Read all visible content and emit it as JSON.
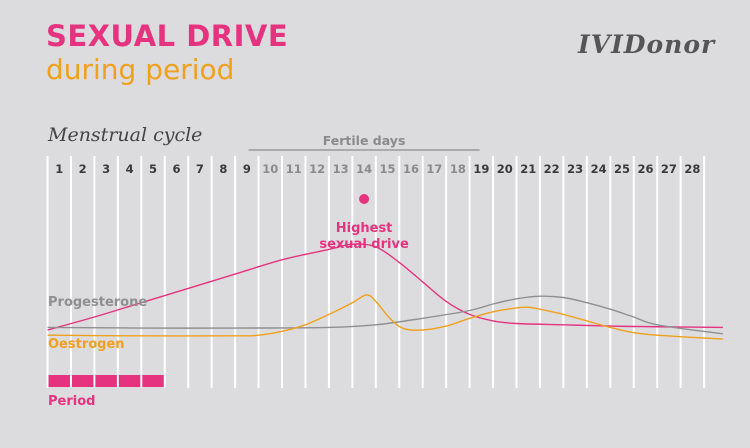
{
  "header": {
    "title": "SEXUAL DRIVE",
    "subtitle": "during period",
    "logo": "IVIDonor",
    "cycle_label": "Menstrual cycle"
  },
  "colors": {
    "accent_pink": "#e5337f",
    "accent_orange": "#f0a01c",
    "grey": "#8f8f8f",
    "fertile_text": "#8a8a8a",
    "background": "#dcdcde"
  },
  "chart_data": {
    "type": "line",
    "x_label": "Menstrual cycle",
    "days": [
      1,
      2,
      3,
      4,
      5,
      6,
      7,
      8,
      9,
      10,
      11,
      12,
      13,
      14,
      15,
      16,
      17,
      18,
      19,
      20,
      21,
      22,
      23,
      24,
      25,
      26,
      27,
      28
    ],
    "fertile_days": {
      "label": "Fertile days",
      "start": 10,
      "end": 18
    },
    "period": {
      "label": "Period",
      "start": 1,
      "end": 5
    },
    "peak_annotation": {
      "day": 14,
      "lines": [
        "Highest",
        "sexual drive"
      ]
    },
    "series": [
      {
        "name": "",
        "role": "sexual-drive",
        "color": "#e5337f",
        "points": [
          [
            0,
            100
          ],
          [
            2,
            90
          ],
          [
            4,
            79
          ],
          [
            6,
            68
          ],
          [
            8,
            57
          ],
          [
            10,
            46
          ],
          [
            12,
            38
          ],
          [
            13,
            34
          ],
          [
            14,
            36
          ],
          [
            15,
            48
          ],
          [
            16,
            63
          ],
          [
            17,
            78
          ],
          [
            18,
            88
          ],
          [
            19,
            93
          ],
          [
            20,
            95
          ],
          [
            22,
            96
          ],
          [
            24,
            97
          ],
          [
            26,
            97.5
          ],
          [
            28.8,
            98
          ]
        ]
      },
      {
        "name": "Progesterone",
        "role": "progesterone",
        "color": "#8f8f8f",
        "points": [
          [
            0,
            98
          ],
          [
            4,
            98.5
          ],
          [
            8,
            98.5
          ],
          [
            12,
            98
          ],
          [
            14,
            96
          ],
          [
            16,
            91
          ],
          [
            18,
            85
          ],
          [
            19,
            80
          ],
          [
            20,
            76
          ],
          [
            21,
            74
          ],
          [
            22,
            75
          ],
          [
            23,
            79
          ],
          [
            24,
            84
          ],
          [
            25,
            90
          ],
          [
            26,
            96
          ],
          [
            28.8,
            103
          ]
        ]
      },
      {
        "name": "Oestrogen",
        "role": "oestrogen",
        "color": "#f0a01c",
        "points": [
          [
            0,
            104
          ],
          [
            4,
            104.5
          ],
          [
            8,
            104.5
          ],
          [
            9,
            104
          ],
          [
            10,
            101
          ],
          [
            11,
            96
          ],
          [
            12,
            88
          ],
          [
            13,
            79
          ],
          [
            13.6,
            73
          ],
          [
            14,
            78
          ],
          [
            14.6,
            91
          ],
          [
            15.2,
            99
          ],
          [
            16,
            100
          ],
          [
            17,
            97
          ],
          [
            18,
            91
          ],
          [
            19,
            86
          ],
          [
            20,
            83
          ],
          [
            20.5,
            82.5
          ],
          [
            21,
            84
          ],
          [
            22,
            88
          ],
          [
            23,
            93
          ],
          [
            24,
            98
          ],
          [
            25,
            102
          ],
          [
            26,
            104
          ],
          [
            28.8,
            107
          ]
        ]
      }
    ],
    "labels": {
      "progesterone": "Progesterone",
      "oestrogen": "Oestrogen"
    }
  }
}
